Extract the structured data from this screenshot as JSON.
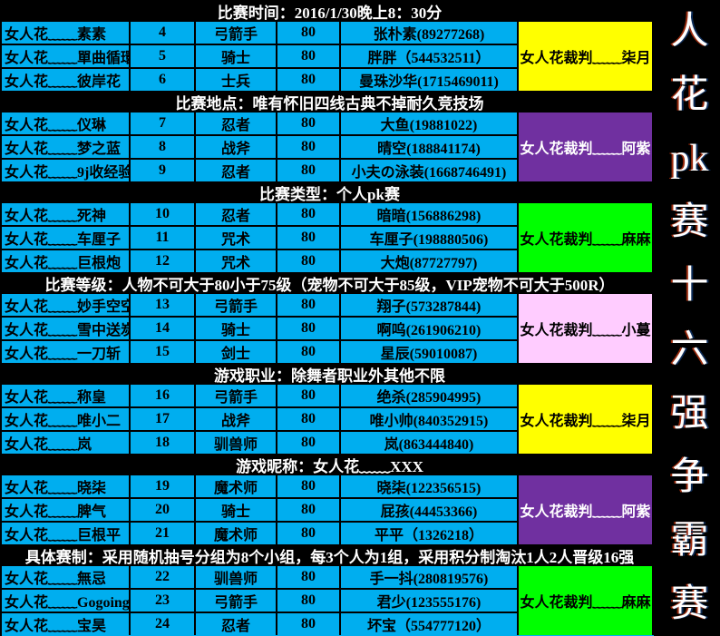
{
  "page": {
    "background": "#000000",
    "cell_color": "#00AEEF"
  },
  "vertical_title": {
    "chars": [
      "人",
      "花",
      "pk",
      "赛",
      "十",
      "六",
      "强",
      "争",
      "霸",
      "赛"
    ]
  },
  "sections": [
    {
      "header": "比赛时间：2016/1/30晚上8：30分",
      "referee": {
        "label": "女人花裁判﹏﹏柒月",
        "style": "background:#FFFF00;color:#000000"
      },
      "rows": [
        {
          "name": "女人花﹏﹏素素",
          "no": "4",
          "class": "弓箭手",
          "level": "80",
          "player": "张朴素(89277268)"
        },
        {
          "name": "女人花﹏﹏單曲循環",
          "no": "5",
          "class": "骑士",
          "level": "80",
          "player": "胖胖（544532511）"
        },
        {
          "name": "女人花﹏﹏彼岸花",
          "no": "6",
          "class": "士兵",
          "level": "80",
          "player": "曼珠沙华(1715469011)"
        }
      ]
    },
    {
      "header": "比赛地点：唯有怀旧四线古典不掉耐久竞技场",
      "referee": {
        "label": "女人花裁判﹏﹏阿紫",
        "style": "background:#7030A0;color:#FFFFFF"
      },
      "rows": [
        {
          "name": "女人花﹏﹏仪琳",
          "no": "7",
          "class": "忍者",
          "level": "80",
          "player": "大鱼(19881022)"
        },
        {
          "name": "女人花﹏﹏梦之蓝",
          "no": "8",
          "class": "战斧",
          "level": "80",
          "player": "晴空(188841174)"
        },
        {
          "name": "女人花﹏﹏9j收经验",
          "no": "9",
          "class": "忍者",
          "level": "80",
          "player": "小夫の泳装(1668746491)"
        }
      ]
    },
    {
      "header": "比赛类型：个人pk赛",
      "referee": {
        "label": "女人花裁判﹏﹏麻麻",
        "style": "background:#00FF00;color:#000000"
      },
      "rows": [
        {
          "name": "女人花﹏﹏死神",
          "no": "10",
          "class": "忍者",
          "level": "80",
          "player": "暗暗(156886298)"
        },
        {
          "name": "女人花﹏﹏车厘子",
          "no": "11",
          "class": "咒术",
          "level": "80",
          "player": "车厘子(198880506)"
        },
        {
          "name": "女人花﹏﹏巨根炮",
          "no": "12",
          "class": "咒术",
          "level": "80",
          "player": "大炮(87727797)"
        }
      ]
    },
    {
      "header": "比赛等级：人物不可大于80小于75级（宠物不可大于85级，VIP宠物不可大于500R）",
      "referee": {
        "label": "女人花裁判﹏﹏小蔓",
        "style": "background:#FFCCFF;color:#000000"
      },
      "rows": [
        {
          "name": "女人花﹏﹏妙手空空",
          "no": "13",
          "class": "弓箭手",
          "level": "80",
          "player": "翔子(573287844)"
        },
        {
          "name": "女人花﹏﹏雪中送炭",
          "no": "14",
          "class": "骑士",
          "level": "80",
          "player": "啊呜(261906210)"
        },
        {
          "name": "女人花﹏﹏一刀斩",
          "no": "15",
          "class": "剑士",
          "level": "80",
          "player": "星辰(59010087)"
        }
      ]
    },
    {
      "header": "游戏职业：除舞者职业外其他不限",
      "referee": {
        "label": "女人花裁判﹏﹏柒月",
        "style": "background:#FFFF00;color:#000000"
      },
      "rows": [
        {
          "name": "女人花﹏﹏称皇",
          "no": "16",
          "class": "弓箭手",
          "level": "80",
          "player": "绝杀(285904995)"
        },
        {
          "name": "女人花﹏﹏唯小二",
          "no": "17",
          "class": "战斧",
          "level": "80",
          "player": "唯小帅(840352915)"
        },
        {
          "name": "女人花﹏﹏岚",
          "no": "18",
          "class": "驯兽师",
          "level": "80",
          "player": "岚(863444840)"
        }
      ]
    },
    {
      "header": "游戏昵称：女人花﹏﹏XXX",
      "referee": {
        "label": "女人花裁判﹏﹏阿紫",
        "style": "background:#7030A0;color:#FFFFFF"
      },
      "rows": [
        {
          "name": "女人花﹏﹏晓柒",
          "no": "19",
          "class": "魔术师",
          "level": "80",
          "player": "晓柒(122356515)"
        },
        {
          "name": "女人花﹏﹏脾气",
          "no": "20",
          "class": "骑士",
          "level": "80",
          "player": "屁孩(44453366)"
        },
        {
          "name": "女人花﹏﹏巨根平",
          "no": "21",
          "class": "魔术师",
          "level": "80",
          "player": "平平（1326218）"
        }
      ]
    },
    {
      "header": "具体赛制：采用随机抽号分组为8个小组，每3个人为1组，采用积分制淘汰1人2人晋级16强",
      "referee": {
        "label": "女人花裁判﹏﹏麻麻",
        "style": "background:#00FF00;color:#000000"
      },
      "rows": [
        {
          "name": "女人花﹏﹏無忌",
          "no": "22",
          "class": "驯兽师",
          "level": "80",
          "player": "手一抖(280819576)"
        },
        {
          "name": "女人花﹏﹏Gogoing",
          "no": "23",
          "class": "弓箭手",
          "level": "80",
          "player": "君少(123555176)"
        },
        {
          "name": "女人花﹏﹏宝昊",
          "no": "24",
          "class": "忍者",
          "level": "80",
          "player": "坏宝（554777120）"
        }
      ]
    }
  ]
}
